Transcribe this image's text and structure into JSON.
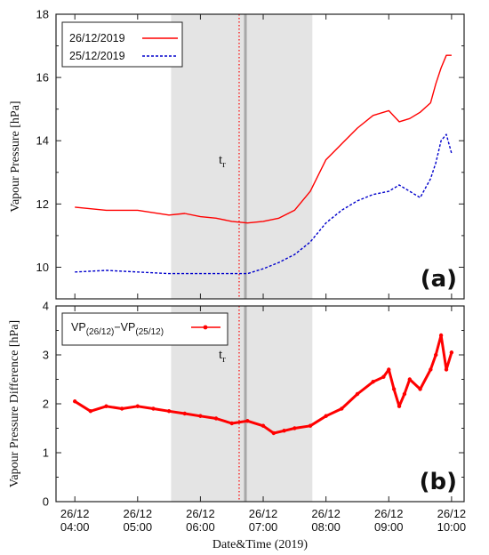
{
  "chart_data": [
    {
      "panel": "(a)",
      "type": "line",
      "ylabel": "Vapour Pressure [hPa]",
      "ylim": [
        9,
        18
      ],
      "yticks": [
        "10",
        "12",
        "14",
        "16",
        "18"
      ],
      "xlim": [
        "04:00",
        "10:00"
      ],
      "x_ticks": [
        {
          "date": "26/12",
          "time": "04:00"
        },
        {
          "date": "26/12",
          "time": "05:00"
        },
        {
          "date": "26/12",
          "time": "06:00"
        },
        {
          "date": "26/12",
          "time": "07:00"
        },
        {
          "date": "26/12",
          "time": "08:00"
        },
        {
          "date": "26/12",
          "time": "09:00"
        },
        {
          "date": "26/12",
          "time": "10:00"
        }
      ],
      "shaded_region": [
        "05:32",
        "07:47"
      ],
      "tr_marker": {
        "label": "t",
        "sub": "r",
        "time": "06:37"
      },
      "grey_line_time": "06:43",
      "legend": {
        "placement": "top-left"
      },
      "series": [
        {
          "name": "26/12/2019",
          "color": "#ff0000",
          "style": "solid",
          "x": [
            "04:00",
            "04:30",
            "05:00",
            "05:30",
            "05:45",
            "06:00",
            "06:15",
            "06:30",
            "06:45",
            "07:00",
            "07:15",
            "07:30",
            "07:45",
            "08:00",
            "08:15",
            "08:30",
            "08:45",
            "09:00",
            "09:10",
            "09:20",
            "09:30",
            "09:40",
            "09:45",
            "09:50",
            "09:55",
            "10:00"
          ],
          "y": [
            11.9,
            11.8,
            11.8,
            11.65,
            11.7,
            11.6,
            11.55,
            11.45,
            11.4,
            11.45,
            11.55,
            11.8,
            12.4,
            13.4,
            13.9,
            14.4,
            14.8,
            14.95,
            14.6,
            14.7,
            14.9,
            15.2,
            15.8,
            16.3,
            16.7,
            16.7
          ]
        },
        {
          "name": "25/12/2019",
          "color": "#0000cc",
          "style": "dashed",
          "x": [
            "04:00",
            "04:30",
            "05:00",
            "05:30",
            "06:00",
            "06:15",
            "06:30",
            "06:45",
            "07:00",
            "07:15",
            "07:30",
            "07:45",
            "08:00",
            "08:15",
            "08:30",
            "08:45",
            "09:00",
            "09:10",
            "09:20",
            "09:30",
            "09:40",
            "09:45",
            "09:50",
            "09:55",
            "10:00"
          ],
          "y": [
            9.85,
            9.9,
            9.85,
            9.8,
            9.8,
            9.8,
            9.8,
            9.8,
            9.95,
            10.15,
            10.4,
            10.8,
            11.4,
            11.8,
            12.1,
            12.3,
            12.4,
            12.6,
            12.4,
            12.2,
            12.8,
            13.3,
            14.0,
            14.2,
            13.6
          ]
        }
      ]
    },
    {
      "panel": "(b)",
      "type": "line",
      "ylabel": "Vapour Pressure Difference [hPa]",
      "xlabel": "Date&Time (2019)",
      "ylim": [
        0,
        4
      ],
      "yticks": [
        "0",
        "1",
        "2",
        "3",
        "4"
      ],
      "xlim": [
        "04:00",
        "10:00"
      ],
      "shaded_region": [
        "05:32",
        "07:47"
      ],
      "tr_marker": {
        "label": "t",
        "sub": "r",
        "time": "06:37"
      },
      "grey_line_time": "06:43",
      "legend": {
        "placement": "top-left"
      },
      "series": [
        {
          "name_main": "VP",
          "name_sub1": "(26/12)",
          "name_mid": "−VP",
          "name_sub2": "(25/12)",
          "color": "#ff0000",
          "style": "solid-with-points",
          "x": [
            "04:00",
            "04:15",
            "04:30",
            "04:45",
            "05:00",
            "05:15",
            "05:30",
            "05:45",
            "06:00",
            "06:15",
            "06:30",
            "06:45",
            "07:00",
            "07:10",
            "07:20",
            "07:30",
            "07:45",
            "08:00",
            "08:15",
            "08:30",
            "08:45",
            "08:55",
            "09:00",
            "09:05",
            "09:10",
            "09:15",
            "09:20",
            "09:30",
            "09:40",
            "09:45",
            "09:50",
            "09:55",
            "10:00"
          ],
          "y": [
            2.05,
            1.85,
            1.95,
            1.9,
            1.95,
            1.9,
            1.85,
            1.8,
            1.75,
            1.7,
            1.6,
            1.65,
            1.55,
            1.4,
            1.45,
            1.5,
            1.55,
            1.75,
            1.9,
            2.2,
            2.45,
            2.55,
            2.7,
            2.3,
            1.95,
            2.2,
            2.5,
            2.3,
            2.7,
            3.0,
            3.4,
            2.7,
            3.05
          ]
        }
      ]
    }
  ]
}
